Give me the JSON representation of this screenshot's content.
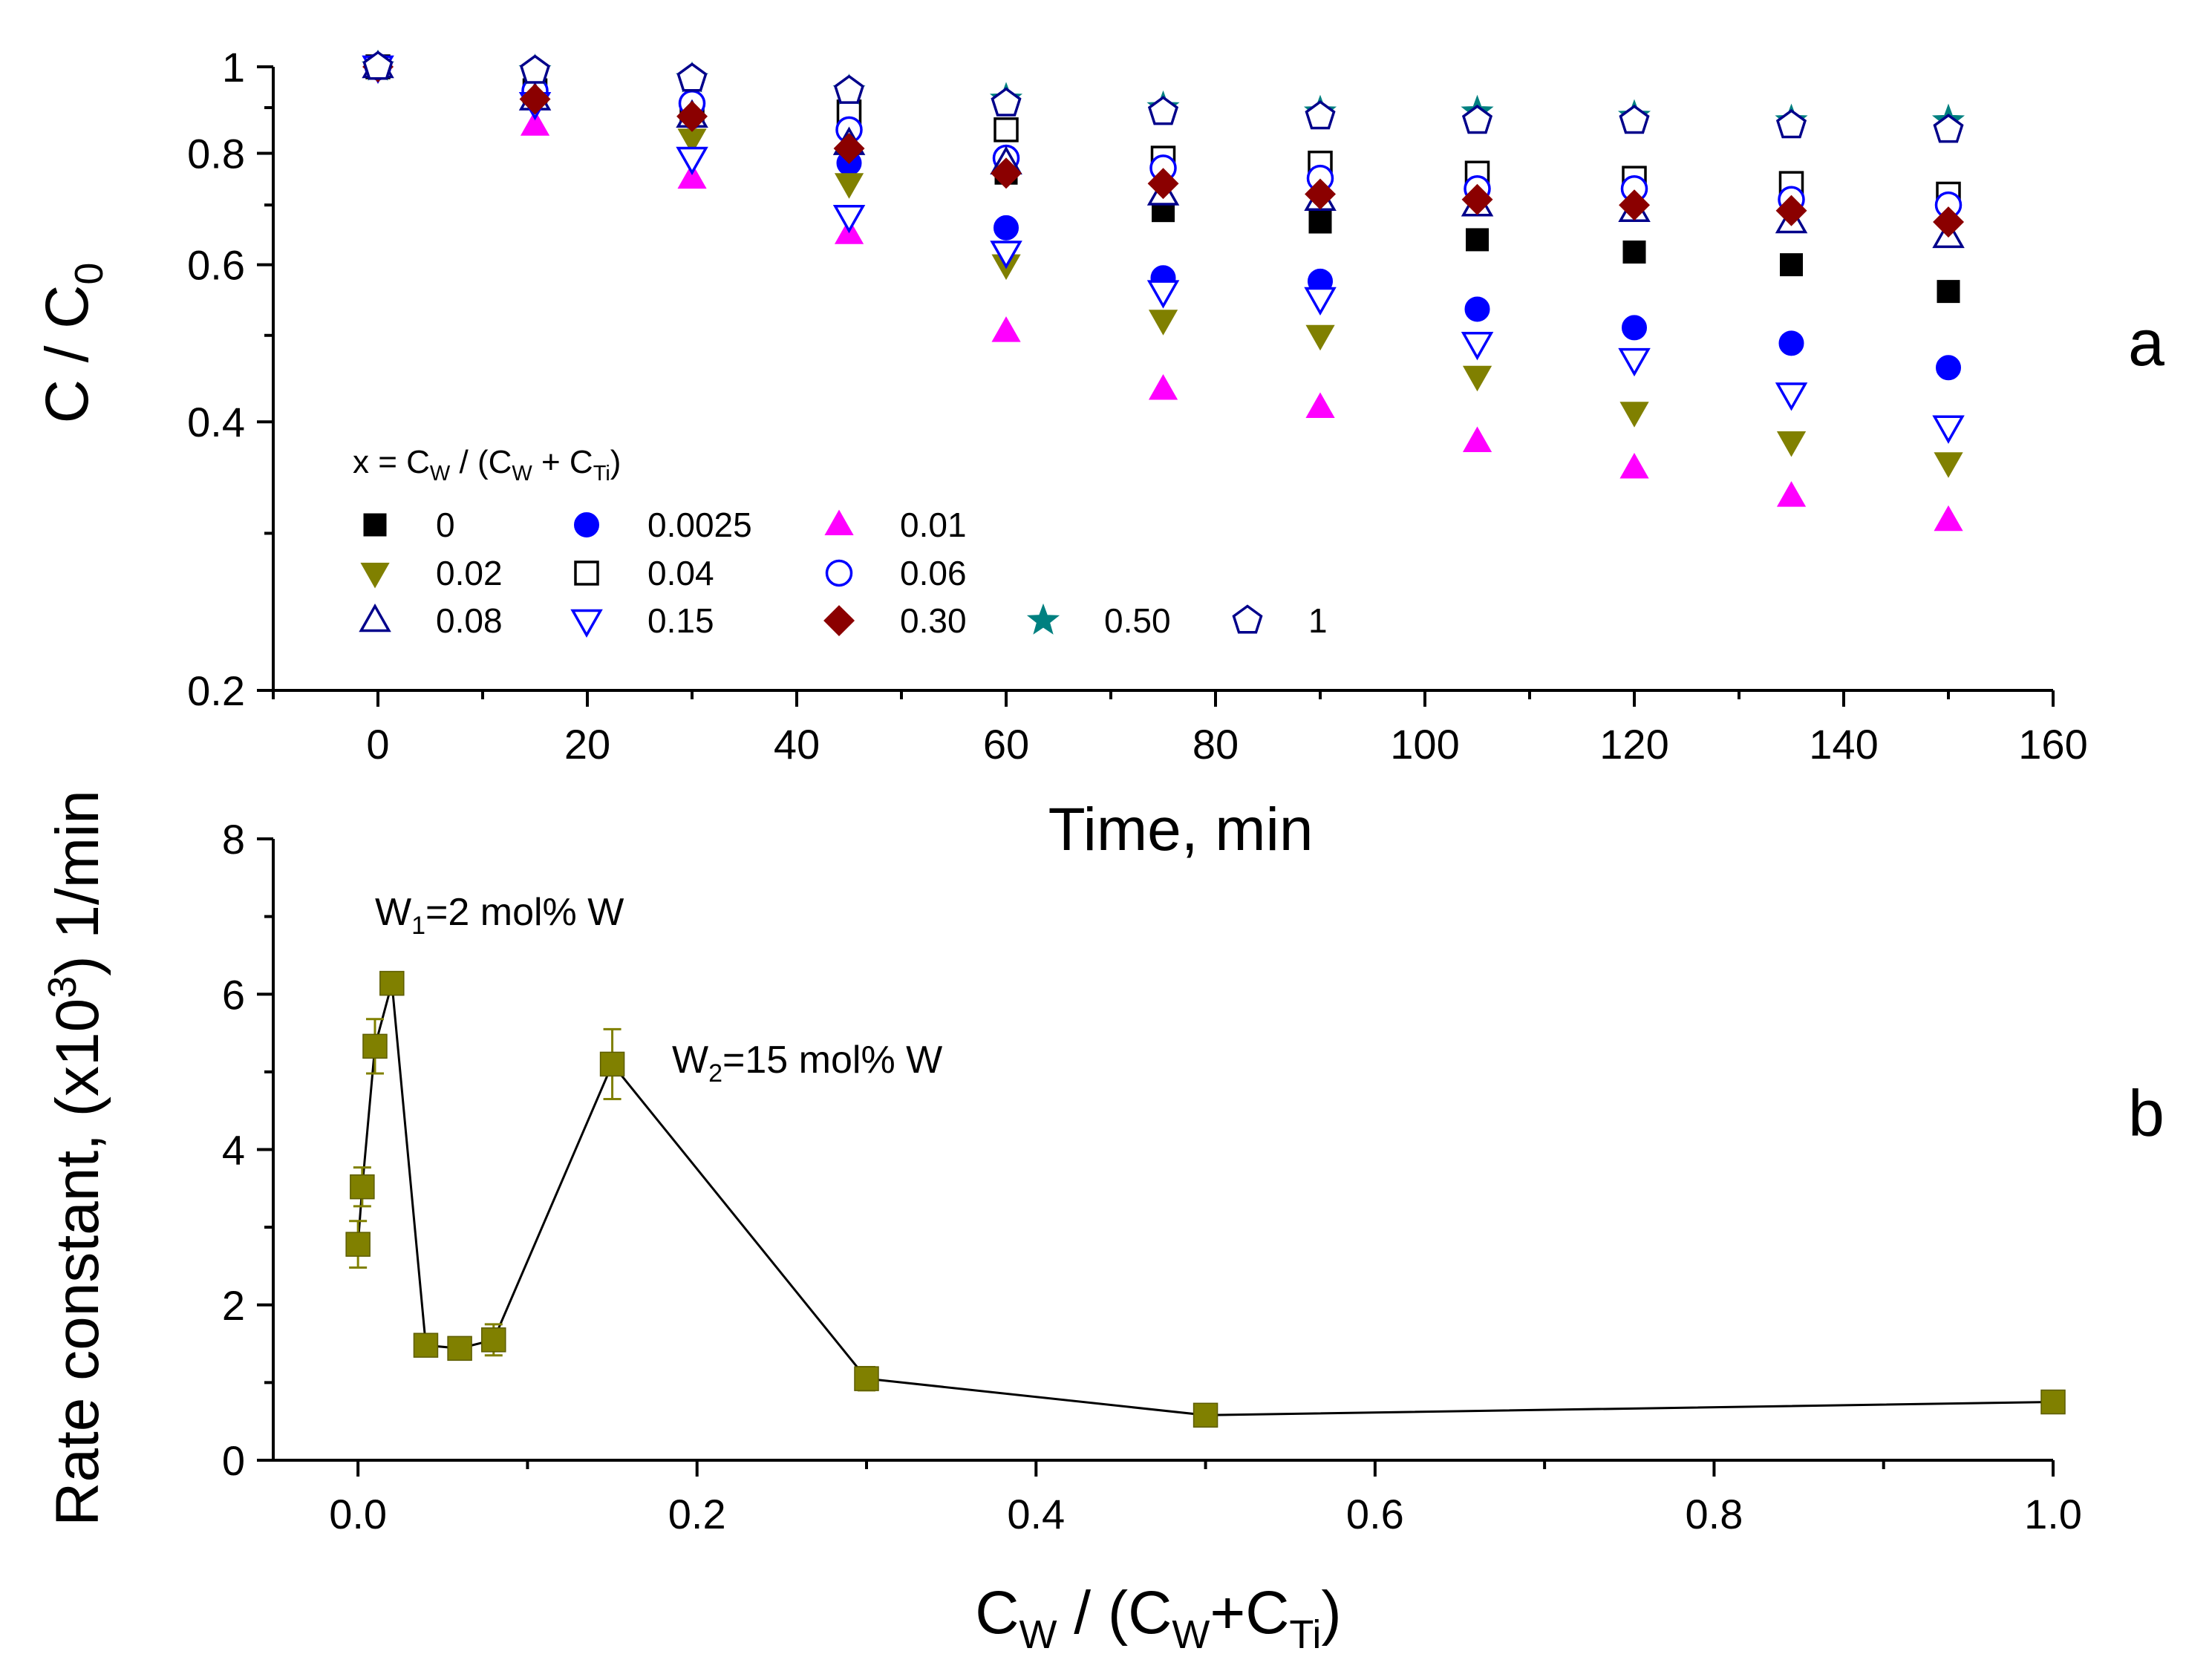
{
  "chart_data": [
    {
      "type": "scatter",
      "panel_label": "a",
      "title": "",
      "xlabel": "Time, min",
      "ylabel": {
        "main": "C / C",
        "sub": "0"
      },
      "yscale": "log",
      "xlim": [
        -10,
        160
      ],
      "ylim": [
        0.2,
        1.0
      ],
      "x_ticks": [
        0,
        20,
        40,
        60,
        80,
        100,
        120,
        140,
        160
      ],
      "y_ticks": [
        0.2,
        0.4,
        0.6,
        0.8,
        1
      ],
      "y_tick_labels": [
        "0.2",
        "0.4",
        "0.6",
        "0.8",
        "1"
      ],
      "legend_title": {
        "p1": "x = C",
        "s1": "W",
        "p2": " / (C",
        "s2": "W",
        "p3": " + C",
        "s3": "Ti",
        "p4": ")"
      },
      "x": [
        0,
        15,
        30,
        45,
        60,
        75,
        90,
        105,
        120,
        135,
        150
      ],
      "series": [
        {
          "name": "0",
          "marker": "square",
          "filled": true,
          "color": "#000000",
          "values": [
            1.0,
            0.93,
            0.89,
            0.86,
            0.76,
            0.69,
            0.67,
            0.64,
            0.62,
            0.6,
            0.56
          ]
        },
        {
          "name": "0.0025",
          "marker": "circle",
          "filled": true,
          "color": "#0000ff",
          "values": [
            1.0,
            0.93,
            0.88,
            0.78,
            0.66,
            0.58,
            0.575,
            0.535,
            0.51,
            0.49,
            0.46
          ]
        },
        {
          "name": "0.01",
          "marker": "triangle-up",
          "filled": true,
          "color": "#ff00ff",
          "values": [
            1.0,
            0.86,
            0.75,
            0.65,
            0.505,
            0.435,
            0.415,
            0.38,
            0.355,
            0.33,
            0.31
          ]
        },
        {
          "name": "0.02",
          "marker": "triangle-down",
          "filled": true,
          "color": "#808000",
          "values": [
            1.0,
            0.91,
            0.83,
            0.74,
            0.6,
            0.52,
            0.5,
            0.45,
            0.41,
            0.38,
            0.36
          ]
        },
        {
          "name": "0.04",
          "marker": "square",
          "filled": false,
          "color": "#000000",
          "values": [
            1.0,
            0.94,
            0.89,
            0.89,
            0.85,
            0.79,
            0.78,
            0.76,
            0.75,
            0.74,
            0.72
          ]
        },
        {
          "name": "0.06",
          "marker": "circle",
          "filled": false,
          "color": "#0000ff",
          "values": [
            1.0,
            0.94,
            0.91,
            0.85,
            0.79,
            0.77,
            0.75,
            0.73,
            0.73,
            0.71,
            0.7
          ]
        },
        {
          "name": "0.08",
          "marker": "triangle-up",
          "filled": false,
          "color": "#00008b",
          "values": [
            1.0,
            0.92,
            0.88,
            0.82,
            0.78,
            0.72,
            0.71,
            0.7,
            0.69,
            0.67,
            0.645
          ]
        },
        {
          "name": "0.15",
          "marker": "triangle-down",
          "filled": false,
          "color": "#0000ff",
          "values": [
            1.0,
            0.91,
            0.79,
            0.68,
            0.62,
            0.56,
            0.55,
            0.49,
            0.47,
            0.43,
            0.395
          ]
        },
        {
          "name": "0.30",
          "marker": "diamond",
          "filled": true,
          "color": "#8b0000",
          "values": [
            1.0,
            0.92,
            0.88,
            0.81,
            0.76,
            0.74,
            0.72,
            0.71,
            0.7,
            0.69,
            0.67
          ]
        },
        {
          "name": "0.50",
          "marker": "star",
          "filled": true,
          "color": "#008080",
          "values": [
            1.0,
            0.99,
            0.97,
            0.94,
            0.92,
            0.9,
            0.89,
            0.89,
            0.88,
            0.87,
            0.87
          ]
        },
        {
          "name": "1",
          "marker": "pentagon",
          "filled": false,
          "color": "#00008b",
          "values": [
            1.0,
            0.99,
            0.97,
            0.94,
            0.91,
            0.89,
            0.88,
            0.87,
            0.87,
            0.86,
            0.85
          ]
        }
      ]
    },
    {
      "type": "line",
      "panel_label": "b",
      "title": "",
      "xlabel": {
        "p1": "C",
        "s1": "W",
        "p2": " / (C",
        "s2": "W",
        "p3": "+C",
        "s3": "Ti",
        "p4": ")"
      },
      "ylabel": {
        "p1": "Rate constant, (x10",
        "sup": "3",
        "p2": ") 1/min"
      },
      "xlim": [
        -0.05,
        1.0
      ],
      "ylim": [
        0,
        8
      ],
      "x_ticks": [
        0.0,
        0.2,
        0.4,
        0.6,
        0.8,
        1.0
      ],
      "x_tick_labels": [
        "0.0",
        "0.2",
        "0.4",
        "0.6",
        "0.8",
        "1.0"
      ],
      "y_ticks": [
        0,
        2,
        4,
        6,
        8
      ],
      "y_tick_labels": [
        "0",
        "2",
        "4",
        "6",
        "8"
      ],
      "marker_color": "#808000",
      "x": [
        0,
        0.0025,
        0.01,
        0.02,
        0.04,
        0.06,
        0.08,
        0.15,
        0.3,
        0.5,
        1.0
      ],
      "values": [
        2.78,
        3.52,
        5.33,
        6.14,
        1.48,
        1.44,
        1.55,
        5.1,
        1.05,
        0.58,
        0.75
      ],
      "errors": [
        0.3,
        0.25,
        0.35,
        0.1,
        0.05,
        0.05,
        0.2,
        0.45,
        0.15,
        0.05,
        0.05
      ],
      "annotations": [
        {
          "p1": "W",
          "sub": "1",
          "p2": "=2 mol% W"
        },
        {
          "p1": "W",
          "sub": "2",
          "p2": "=15 mol% W"
        }
      ]
    }
  ]
}
